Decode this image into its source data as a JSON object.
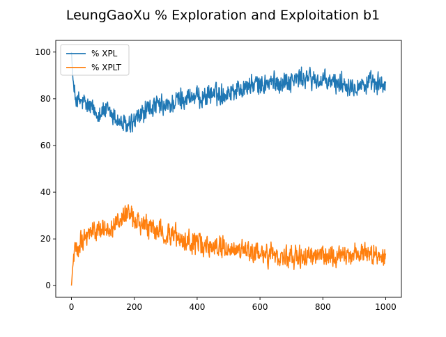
{
  "chart_data": {
    "type": "line",
    "title": "LeungGaoXu % Exploration and Exploitation b1",
    "xlabel": "",
    "ylabel": "",
    "xlim": [
      -50,
      1050
    ],
    "ylim": [
      -5,
      105
    ],
    "xticks": [
      0,
      200,
      400,
      600,
      800,
      1000
    ],
    "yticks": [
      0,
      20,
      40,
      60,
      80,
      100
    ],
    "legend_position": "upper-left",
    "grid": false,
    "x_range": [
      0,
      1000
    ],
    "series": [
      {
        "name": "% XPL",
        "color": "#1f77b4",
        "trend": [
          [
            0,
            100
          ],
          [
            4,
            90
          ],
          [
            8,
            82
          ],
          [
            20,
            79
          ],
          [
            40,
            78
          ],
          [
            60,
            76
          ],
          [
            80,
            74
          ],
          [
            100,
            75
          ],
          [
            120,
            74
          ],
          [
            140,
            72
          ],
          [
            160,
            69
          ],
          [
            180,
            68
          ],
          [
            200,
            70
          ],
          [
            220,
            73
          ],
          [
            250,
            76
          ],
          [
            280,
            77
          ],
          [
            300,
            76
          ],
          [
            320,
            78
          ],
          [
            350,
            80
          ],
          [
            380,
            81
          ],
          [
            400,
            80
          ],
          [
            420,
            81
          ],
          [
            450,
            82
          ],
          [
            480,
            82
          ],
          [
            500,
            83
          ],
          [
            520,
            84
          ],
          [
            550,
            85
          ],
          [
            580,
            86
          ],
          [
            600,
            86
          ],
          [
            650,
            87
          ],
          [
            700,
            88
          ],
          [
            750,
            89
          ],
          [
            780,
            88
          ],
          [
            800,
            87
          ],
          [
            850,
            87
          ],
          [
            900,
            86
          ],
          [
            950,
            86
          ],
          [
            1000,
            86
          ]
        ],
        "noise": 5.5
      },
      {
        "name": "% XPLT",
        "color": "#ff7f0e",
        "trend": [
          [
            0,
            0
          ],
          [
            4,
            8
          ],
          [
            10,
            14
          ],
          [
            30,
            20
          ],
          [
            60,
            23
          ],
          [
            100,
            24
          ],
          [
            140,
            26
          ],
          [
            170,
            30
          ],
          [
            200,
            28
          ],
          [
            230,
            25
          ],
          [
            260,
            24
          ],
          [
            300,
            22
          ],
          [
            330,
            21
          ],
          [
            360,
            19
          ],
          [
            400,
            18
          ],
          [
            430,
            17
          ],
          [
            460,
            17
          ],
          [
            500,
            16
          ],
          [
            530,
            15
          ],
          [
            560,
            14
          ],
          [
            600,
            14
          ],
          [
            650,
            13
          ],
          [
            700,
            12
          ],
          [
            750,
            12
          ],
          [
            800,
            13
          ],
          [
            850,
            13
          ],
          [
            900,
            14
          ],
          [
            950,
            14
          ],
          [
            1000,
            14
          ]
        ],
        "noise": 5.5
      }
    ]
  }
}
